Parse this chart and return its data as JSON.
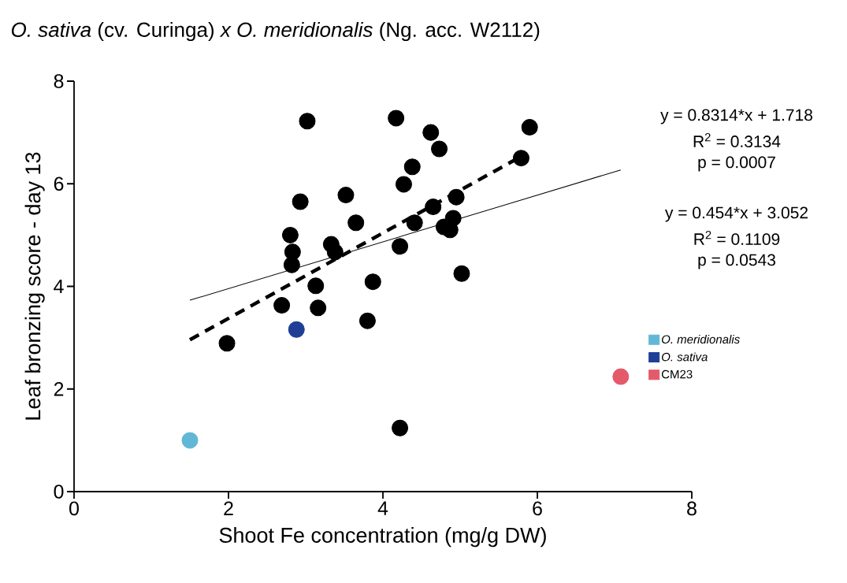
{
  "chart_data": {
    "type": "scatter",
    "title": "*O. sativa* (cv. Curinga) *x O. meridionalis* (Ng. acc. W2112)",
    "xlabel": "Shoot Fe concentration (mg/g DW)",
    "ylabel": "Leaf bronzing score - day 13",
    "xlim": [
      0,
      8
    ],
    "ylim": [
      0,
      8
    ],
    "xticks": [
      0,
      2,
      4,
      6,
      8
    ],
    "yticks": [
      0,
      2,
      4,
      6,
      8
    ],
    "legend": "right",
    "marker": "circle",
    "annotations": [
      "y = 0.8314*x + 1.718",
      "R$^{2}$ = 0.3134",
      "p = 0.0007",
      "y = 0.454*x + 3.052",
      "R$^{2}$ = 0.1109",
      "p = 0.0543"
    ],
    "series": [
      {
        "color": "#000000",
        "x": [
          1.98,
          3.02,
          2.93,
          2.8,
          2.83,
          2.82,
          2.69,
          3.13,
          3.16,
          3.33,
          3.38,
          3.52,
          3.65,
          3.87,
          3.8,
          4.17,
          4.62,
          4.73,
          5.9,
          5.79,
          4.38,
          4.27,
          4.95,
          4.65,
          4.41,
          4.91,
          4.79,
          4.87,
          4.22,
          5.02,
          4.22
        ],
        "values": [
          2.89,
          7.22,
          5.65,
          5.0,
          4.67,
          4.42,
          3.63,
          4.01,
          3.58,
          4.82,
          4.67,
          5.78,
          5.24,
          4.09,
          3.33,
          7.28,
          7.0,
          6.68,
          7.1,
          6.5,
          6.33,
          5.99,
          5.74,
          5.55,
          5.24,
          5.33,
          5.16,
          5.1,
          4.78,
          4.25,
          1.24
        ]
      },
      {
        "name": "*O. meridionalis*",
        "color": "#62b7d6",
        "x": [
          1.5
        ],
        "values": [
          1.0
        ]
      },
      {
        "name": "*O. sativa*",
        "color": "#1f3f96",
        "x": [
          2.88
        ],
        "values": [
          3.16
        ]
      },
      {
        "name": "CM23",
        "color": "#e45a6a",
        "x": [
          7.08
        ],
        "values": [
          2.24
        ]
      },
      {
        "type": "line",
        "color": "#000000",
        "line_style": "dashed",
        "marker": "none",
        "x": [
          1.5,
          5.8
        ],
        "values": [
          2.96,
          6.54
        ]
      },
      {
        "type": "line",
        "color": "#000000",
        "line_style": "solid",
        "marker": "none",
        "x": [
          1.5,
          7.08
        ],
        "values": [
          3.73,
          6.27
        ]
      }
    ]
  }
}
